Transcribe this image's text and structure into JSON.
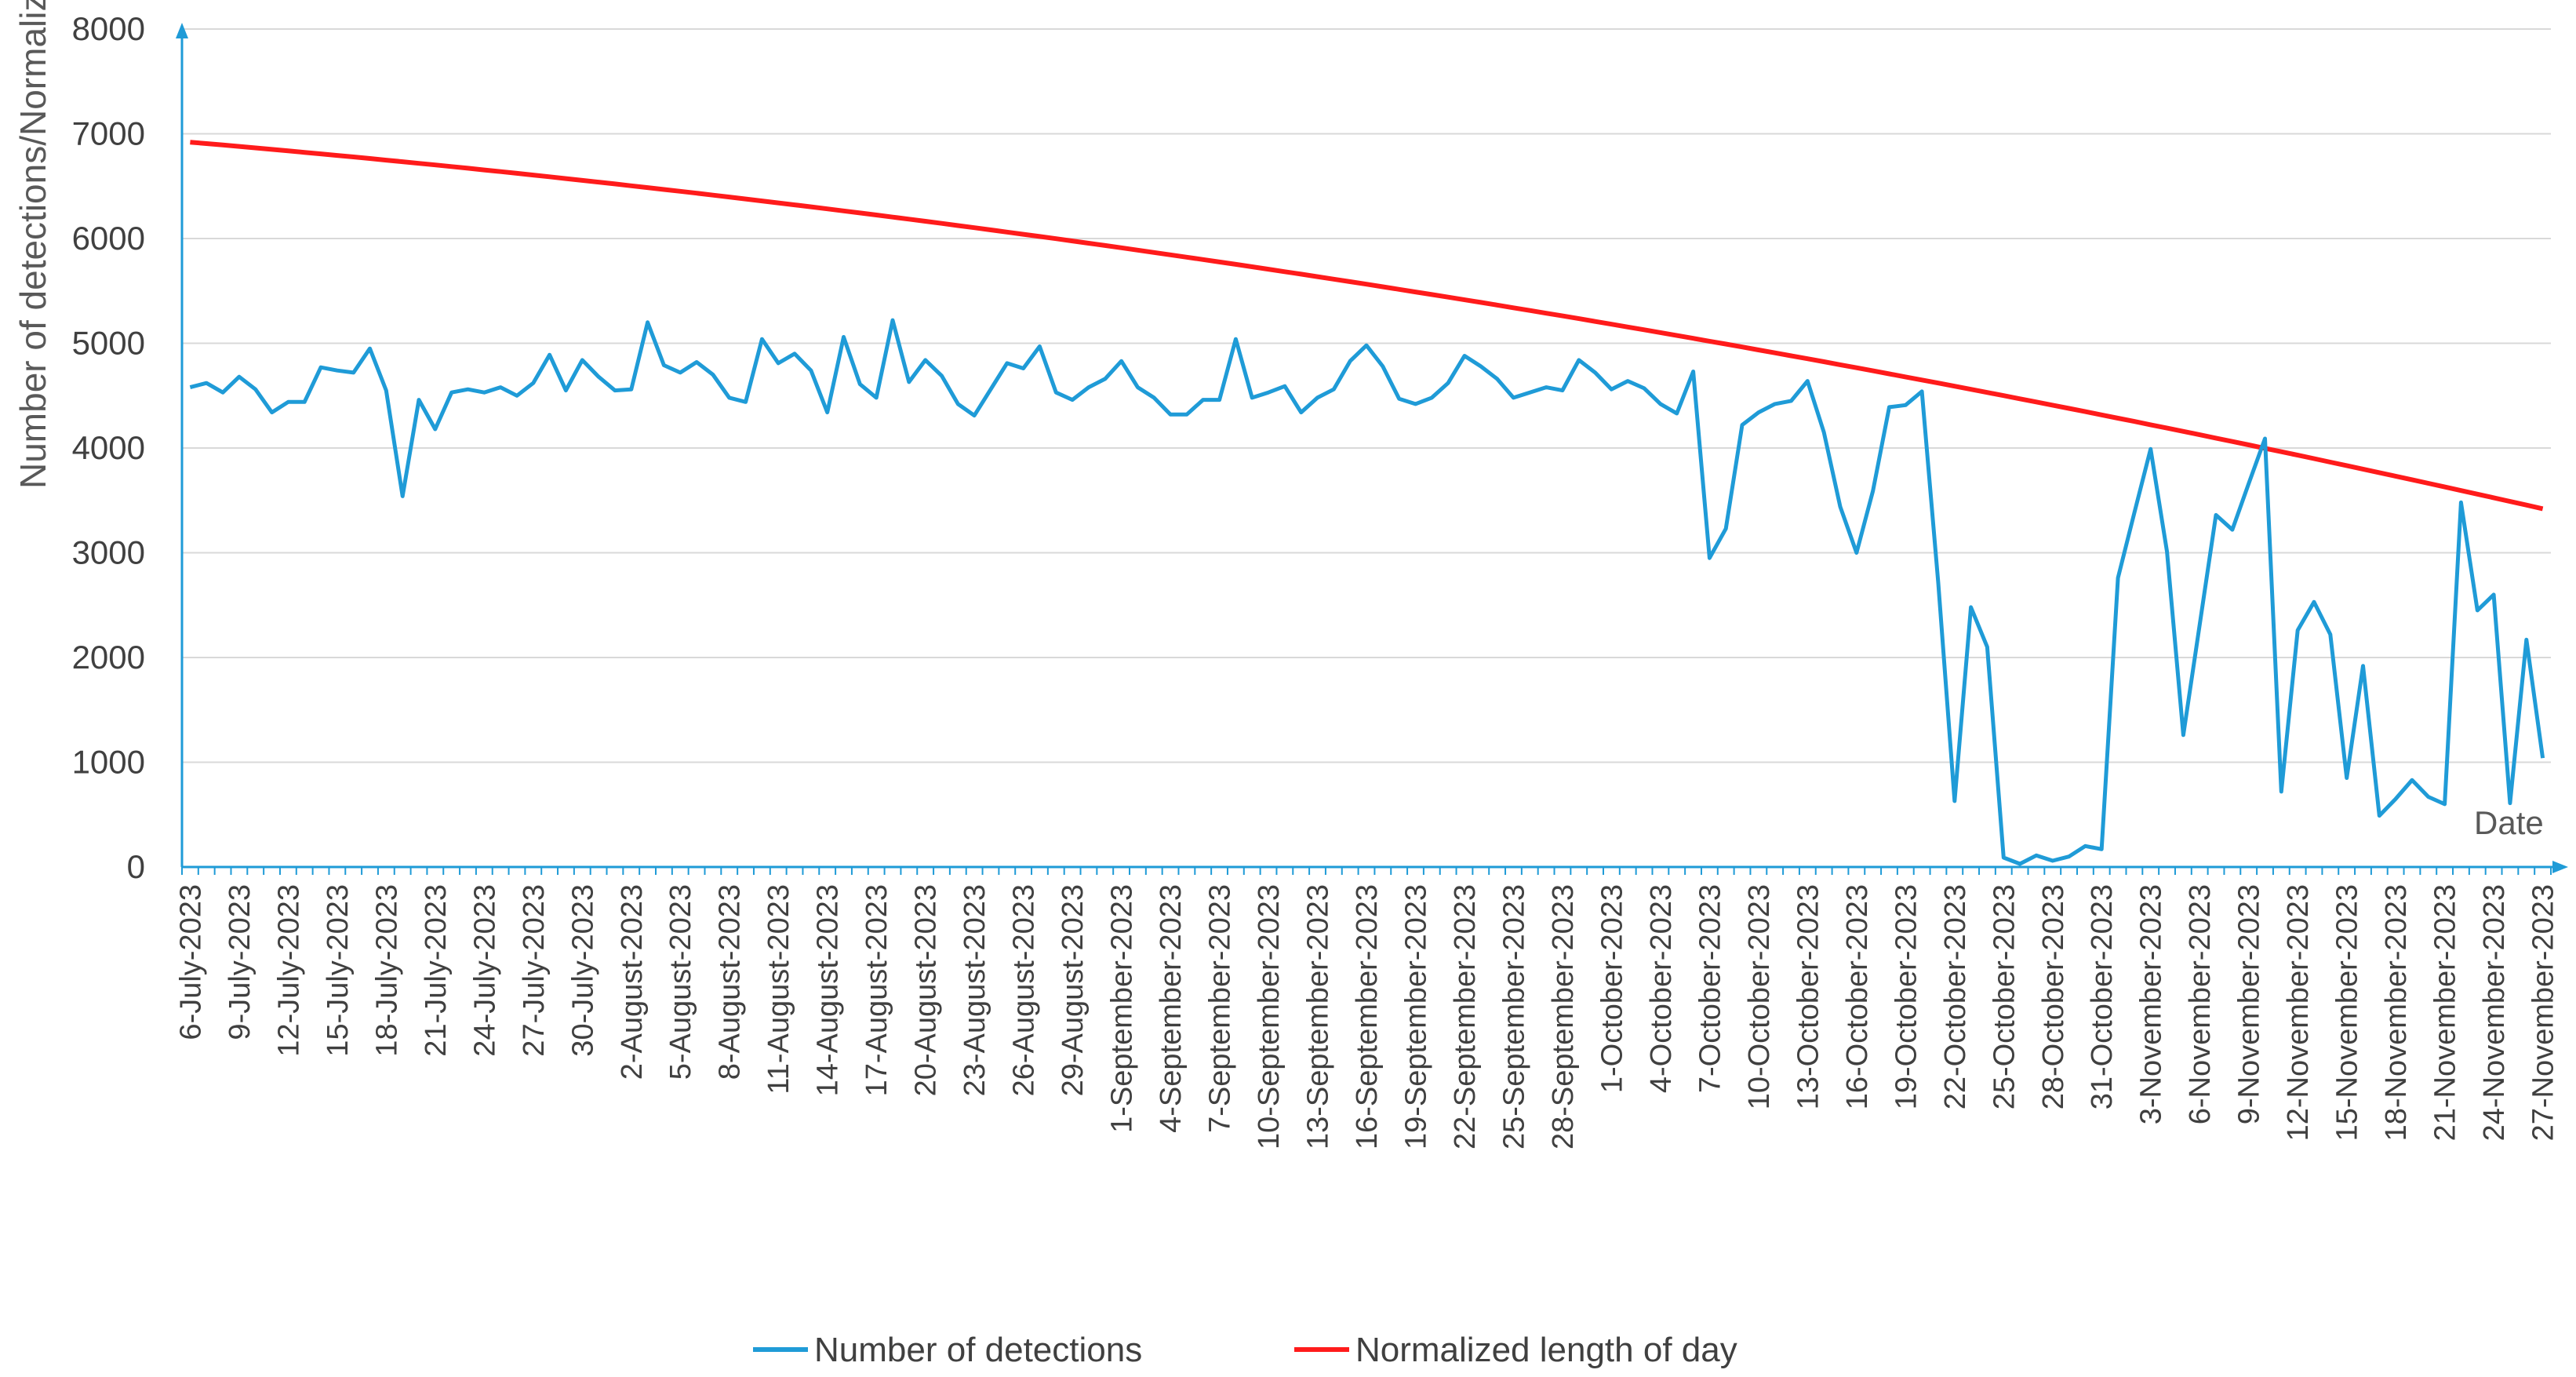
{
  "chart_data": {
    "type": "line",
    "title": "",
    "xlabel": "Date",
    "ylabel": "Number of detections/Normalized length of day",
    "ylim": [
      0,
      8000
    ],
    "yticks": [
      0,
      1000,
      2000,
      3000,
      4000,
      5000,
      6000,
      7000,
      8000
    ],
    "grid": "horizontal",
    "legend_position": "bottom",
    "start_date": "6-July-2023",
    "end_date": "27-November-2023",
    "x_tick_labels": [
      "6-July-2023",
      "9-July-2023",
      "12-July-2023",
      "15-July-2023",
      "18-July-2023",
      "21-July-2023",
      "24-July-2023",
      "27-July-2023",
      "30-July-2023",
      "2-August-2023",
      "5-August-2023",
      "8-August-2023",
      "11-August-2023",
      "14-August-2023",
      "17-August-2023",
      "20-August-2023",
      "23-August-2023",
      "26-August-2023",
      "29-August-2023",
      "1-September-2023",
      "4-September-2023",
      "7-September-2023",
      "10-September-2023",
      "13-September-2023",
      "16-September-2023",
      "19-September-2023",
      "22-September-2023",
      "25-September-2023",
      "28-September-2023",
      "1-October-2023",
      "4-October-2023",
      "7-October-2023",
      "10-October-2023",
      "13-October-2023",
      "16-October-2023",
      "19-October-2023",
      "22-October-2023",
      "25-October-2023",
      "28-October-2023",
      "31-October-2023",
      "3-November-2023",
      "6-November-2023",
      "9-November-2023",
      "12-November-2023",
      "15-November-2023",
      "18-November-2023",
      "21-November-2023",
      "24-November-2023",
      "27-November-2023"
    ],
    "series": [
      {
        "name": "Number of detections",
        "color": "#1f9bd7",
        "values": [
          4580,
          4620,
          4530,
          4680,
          4560,
          4340,
          4440,
          4440,
          4770,
          4740,
          4720,
          4950,
          4550,
          3540,
          4460,
          4180,
          4530,
          4560,
          4530,
          4580,
          4500,
          4620,
          4890,
          4550,
          4840,
          4680,
          4550,
          4560,
          5200,
          4790,
          4720,
          4820,
          4700,
          4480,
          4440,
          5040,
          4810,
          4900,
          4740,
          4340,
          5060,
          4610,
          4480,
          5220,
          4630,
          4840,
          4690,
          4420,
          4310,
          4560,
          4810,
          4760,
          4970,
          4530,
          4460,
          4580,
          4660,
          4830,
          4580,
          4480,
          4320,
          4320,
          4460,
          4460,
          5040,
          4480,
          4530,
          4590,
          4340,
          4480,
          4560,
          4830,
          4980,
          4780,
          4470,
          4420,
          4480,
          4620,
          4880,
          4780,
          4660,
          4480,
          4530,
          4580,
          4550,
          4840,
          4720,
          4560,
          4640,
          4570,
          4420,
          4330,
          4730,
          2950,
          3230,
          4220,
          4340,
          4420,
          4450,
          4640,
          4150,
          3440,
          3000,
          3590,
          4390,
          4410,
          4540,
          2710,
          630,
          2480,
          2100,
          90,
          30,
          110,
          60,
          100,
          200,
          170,
          2760,
          3380,
          3990,
          3010,
          1260,
          2310,
          3360,
          3220,
          3660,
          4090,
          720,
          2260,
          2530,
          2220,
          850,
          1920,
          490,
          650,
          830,
          670,
          600,
          3480,
          2450,
          2600,
          610,
          2170,
          1040
        ]
      },
      {
        "name": "Normalized length of day",
        "color": "#ff1b1b",
        "start_value": 6920,
        "end_value": 3420
      }
    ]
  }
}
